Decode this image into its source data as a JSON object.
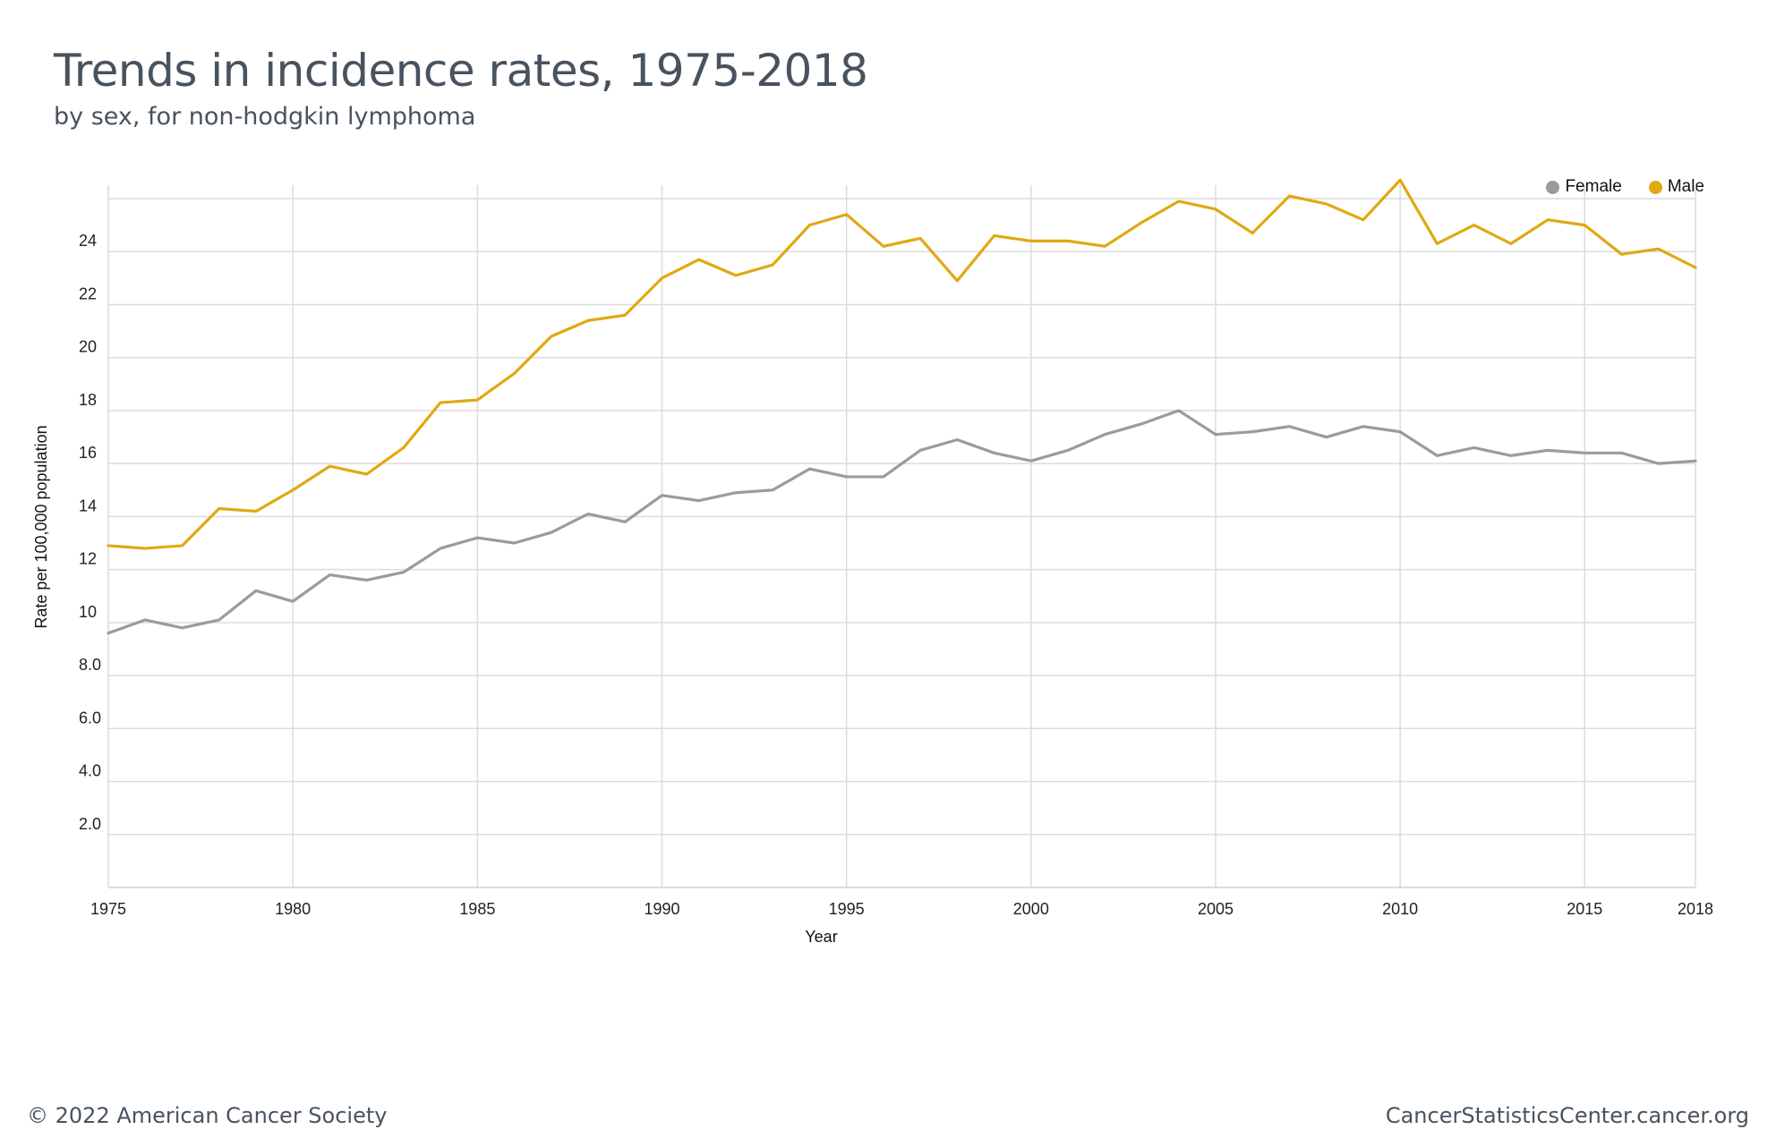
{
  "title": "Trends in incidence rates, 1975-2018",
  "subtitle": "by sex, for non-hodgkin lymphoma",
  "footer": {
    "left": "© 2022 American Cancer Society",
    "right": "CancerStatisticsCenter.cancer.org"
  },
  "legend": [
    {
      "name": "Female",
      "color": "#9b9b9b"
    },
    {
      "name": "Male",
      "color": "#e0a912"
    }
  ],
  "chart_data": {
    "type": "line",
    "title": "Trends in incidence rates, 1975-2018",
    "subtitle": "by sex, for non-hodgkin lymphoma",
    "xlabel": "Year",
    "ylabel": "Rate per 100,000 population",
    "x": [
      1975,
      1976,
      1977,
      1978,
      1979,
      1980,
      1981,
      1982,
      1983,
      1984,
      1985,
      1986,
      1987,
      1988,
      1989,
      1990,
      1991,
      1992,
      1993,
      1994,
      1995,
      1996,
      1997,
      1998,
      1999,
      2000,
      2001,
      2002,
      2003,
      2004,
      2005,
      2006,
      2007,
      2008,
      2009,
      2010,
      2011,
      2012,
      2013,
      2014,
      2015,
      2016,
      2017,
      2018
    ],
    "xlim": [
      1975,
      2018
    ],
    "x_ticks": [
      "1975",
      "1980",
      "1985",
      "1990",
      "1995",
      "2000",
      "2005",
      "2010",
      "2015",
      "2018"
    ],
    "ylim": [
      0,
      26
    ],
    "y_ticks": [
      "2.0",
      "4.0",
      "6.0",
      "8.0",
      "10",
      "12",
      "14",
      "16",
      "18",
      "20",
      "22",
      "24"
    ],
    "grid": true,
    "legend_position": "top-right",
    "series": [
      {
        "name": "Female",
        "color": "#9b9b9b",
        "values": [
          9.6,
          10.1,
          9.8,
          10.1,
          11.2,
          10.8,
          11.8,
          11.6,
          11.9,
          12.8,
          13.2,
          13.0,
          13.4,
          14.1,
          13.8,
          14.8,
          14.6,
          14.9,
          15.0,
          15.8,
          15.5,
          15.5,
          16.5,
          16.9,
          16.4,
          16.1,
          16.5,
          17.1,
          17.5,
          18.0,
          17.1,
          17.2,
          17.4,
          17.0,
          17.4,
          17.2,
          16.3,
          16.6,
          16.3,
          16.5,
          16.4,
          16.4,
          16.0,
          16.1
        ]
      },
      {
        "name": "Male",
        "color": "#e0a912",
        "values": [
          12.9,
          12.8,
          12.9,
          14.3,
          14.2,
          15.0,
          15.9,
          15.6,
          16.6,
          18.3,
          18.4,
          19.4,
          20.8,
          21.4,
          21.6,
          23.0,
          23.7,
          23.1,
          23.5,
          25.0,
          25.4,
          24.2,
          24.5,
          22.9,
          24.6,
          24.4,
          24.4,
          24.2,
          25.1,
          25.9,
          25.6,
          24.7,
          26.1,
          25.8,
          25.2,
          26.7,
          24.3,
          25.0,
          24.3,
          25.2,
          25.0,
          23.9,
          24.1,
          23.4
        ]
      }
    ]
  }
}
